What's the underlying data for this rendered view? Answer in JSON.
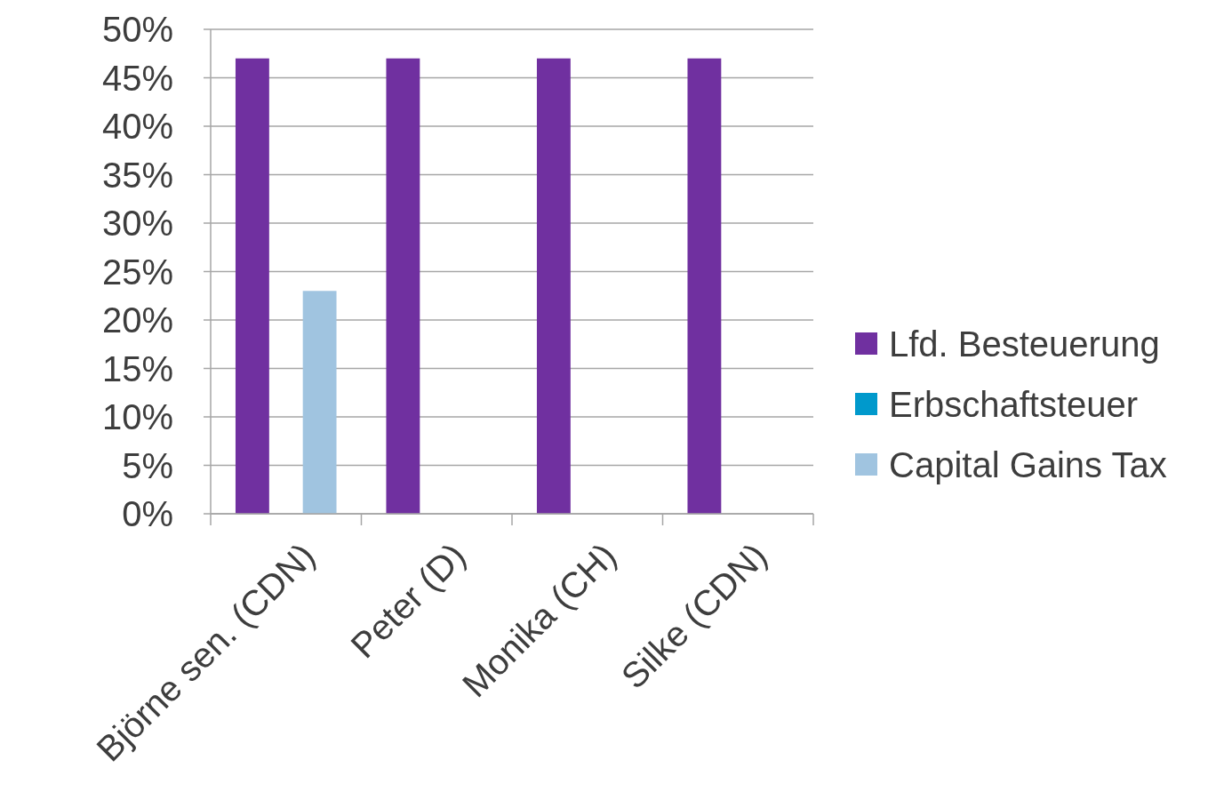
{
  "chart_data": {
    "type": "bar",
    "categories": [
      "Björne sen. (CDN)",
      "Peter (D)",
      "Monika (CH)",
      "Silke (CDN)"
    ],
    "series": [
      {
        "name": "Lfd. Besteuerung",
        "color": "#7030a0",
        "values": [
          47,
          47,
          47,
          47
        ]
      },
      {
        "name": "Erbschaftsteuer",
        "color": "#0099cc",
        "values": [
          0,
          0,
          0,
          0
        ]
      },
      {
        "name": "Capital Gains Tax",
        "color": "#a0c4e0",
        "values": [
          23,
          0,
          0,
          0
        ]
      }
    ],
    "ylim": [
      0,
      50
    ],
    "yticks": [
      {
        "value": 0,
        "label": "0%"
      },
      {
        "value": 5,
        "label": "5%"
      },
      {
        "value": 10,
        "label": "10%"
      },
      {
        "value": 15,
        "label": "15%"
      },
      {
        "value": 20,
        "label": "20%"
      },
      {
        "value": 25,
        "label": "25%"
      },
      {
        "value": 30,
        "label": "30%"
      },
      {
        "value": 35,
        "label": "35%"
      },
      {
        "value": 40,
        "label": "40%"
      },
      {
        "value": 45,
        "label": "45%"
      },
      {
        "value": 50,
        "label": "50%"
      }
    ],
    "grid": "y",
    "legend": "right"
  }
}
